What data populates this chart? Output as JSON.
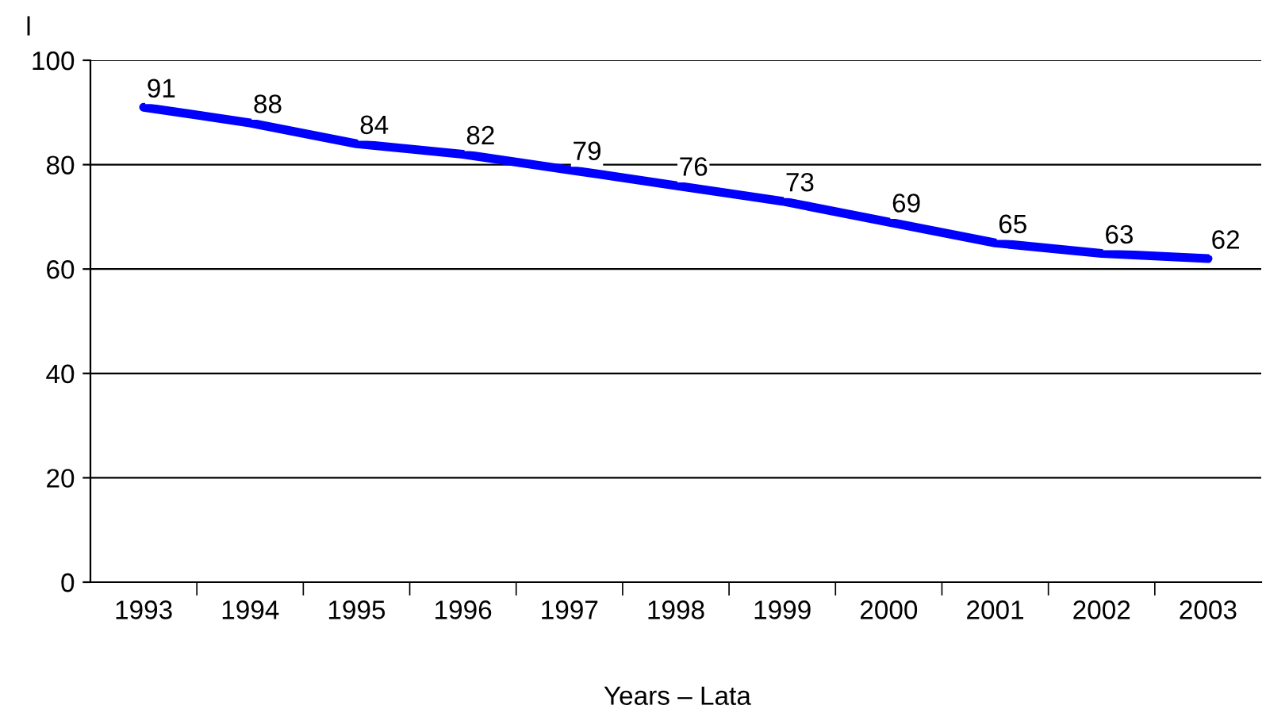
{
  "chart_data": {
    "type": "line",
    "ylabel": "l",
    "xlabel": "Years – Lata",
    "categories": [
      "1993",
      "1994",
      "1995",
      "1996",
      "1997",
      "1998",
      "1999",
      "2000",
      "2001",
      "2002",
      "2003"
    ],
    "series": [
      {
        "color": "#0000ff",
        "values": [
          91,
          88,
          84,
          82,
          79,
          76,
          73,
          69,
          65,
          63,
          62
        ]
      }
    ],
    "ylim": [
      0,
      100
    ],
    "yticks": [
      0,
      20,
      40,
      60,
      80,
      100
    ],
    "grid": "y",
    "data_labels": true,
    "marker": "none",
    "line_style": "solid"
  }
}
